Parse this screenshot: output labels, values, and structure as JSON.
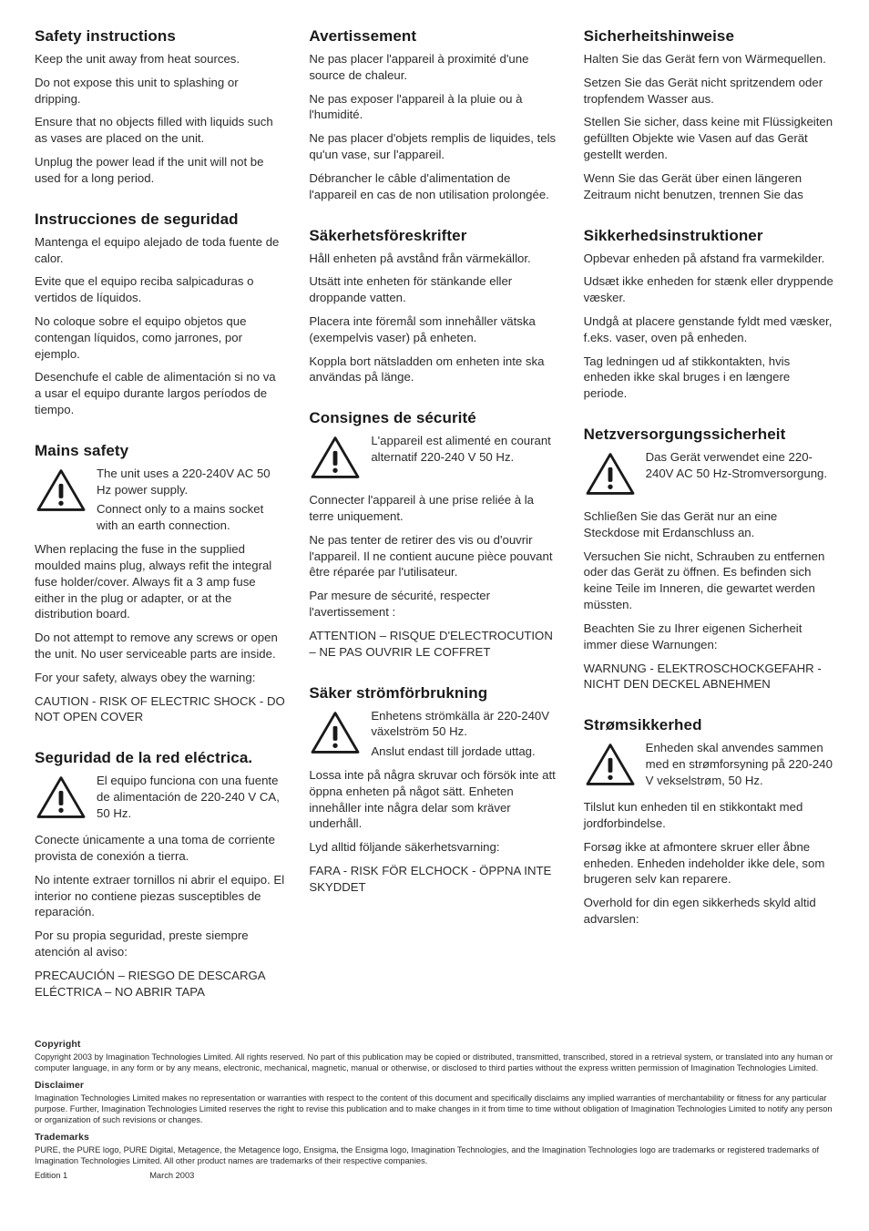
{
  "icon_stroke": "#1a1a1a",
  "columns": [
    [
      {
        "heading": "Safety instructions",
        "paras": [
          "Keep the unit away from heat sources.",
          "Do not expose this unit to splashing or dripping.",
          "Ensure that no objects filled with liquids such as vases are placed on the unit.",
          "Unplug the power lead if the unit will not be used for a long period."
        ]
      },
      {
        "heading": "Instrucciones de seguridad",
        "paras": [
          "Mantenga el equipo alejado de toda fuente de calor.",
          "Evite que el equipo reciba salpicaduras o vertidos de líquidos.",
          "No coloque sobre el equipo objetos que contengan líquidos, como jarrones, por ejemplo.",
          "Desenchufe el cable de alimentación si no va a usar el equipo durante largos períodos de tiempo."
        ]
      },
      {
        "heading": "Mains safety",
        "icon_paras": [
          "The unit uses a 220-240V AC 50 Hz power supply.",
          "Connect only to a mains socket with an earth connection."
        ],
        "paras": [
          "When replacing the fuse in the supplied moulded mains plug, always refit the integral fuse holder/cover.  Always fit a 3 amp fuse either in the plug or adapter, or at the distribution board.",
          "Do not attempt to remove any screws or open the unit. No user serviceable parts are inside.",
          "For your safety, always obey the warning:",
          "CAUTION - RISK OF ELECTRIC SHOCK - DO NOT OPEN COVER"
        ]
      },
      {
        "heading": "Seguridad de la red eléctrica.",
        "icon_paras": [
          "El equipo funciona con una fuente de alimentación de 220-240 V CA, 50 Hz."
        ],
        "paras": [
          "Conecte únicamente a una toma de corriente provista de conexión a tierra.",
          "No intente extraer tornillos ni abrir el equipo. El interior no contiene piezas susceptibles de reparación.",
          "Por su propia seguridad, preste siempre atención al aviso:",
          "PRECAUCIÓN – RIESGO DE DESCARGA ELÉCTRICA – NO ABRIR TAPA"
        ]
      }
    ],
    [
      {
        "heading": "Avertissement",
        "paras": [
          "Ne pas placer l'appareil à proximité d'une source de chaleur.",
          "Ne pas exposer l'appareil à la pluie ou à l'humidité.",
          "Ne pas placer d'objets remplis de liquides, tels qu'un vase, sur l'appareil.",
          "Débrancher le câble d'alimentation de l'appareil en cas de non utilisation prolongée."
        ]
      },
      {
        "heading": "Säkerhetsföreskrifter",
        "paras": [
          "Håll enheten på avstånd från värmekällor.",
          "Utsätt inte enheten för stänkande eller droppande vatten.",
          "Placera inte föremål som innehåller vätska (exempelvis vaser) på enheten.",
          "Koppla bort nätsladden om enheten inte ska användas på länge."
        ]
      },
      {
        "heading": "Consignes de sécurité",
        "icon_paras": [
          "L'appareil est alimenté en courant alternatif 220-240 V 50 Hz."
        ],
        "paras": [
          "Connecter l'appareil à une prise reliée à la terre uniquement.",
          "Ne pas tenter de retirer des vis ou d'ouvrir l'appareil. Il ne contient aucune pièce pouvant être réparée par l'utilisateur.",
          "Par mesure de sécurité, respecter l'avertissement :",
          "ATTENTION – RISQUE D'ELECTROCUTION – NE PAS OUVRIR LE COFFRET"
        ]
      },
      {
        "heading": "Säker strömförbrukning",
        "icon_paras": [
          "Enhetens strömkälla är 220-240V växelström 50 Hz.",
          "Anslut endast till jordade uttag."
        ],
        "paras": [
          "Lossa inte på några skruvar och försök inte att öppna enheten på något sätt. Enheten innehåller inte några delar som kräver underhåll.",
          "Lyd alltid följande säkerhetsvarning:",
          "FARA - RISK FÖR ELCHOCK - ÖPPNA INTE SKYDDET"
        ]
      }
    ],
    [
      {
        "heading": "Sicherheitshinweise",
        "paras": [
          "Halten Sie das Gerät fern von Wärmequellen.",
          "Setzen Sie das Gerät nicht spritzendem oder tropfendem Wasser aus.",
          "Stellen Sie sicher, dass keine mit Flüssigkeiten gefüllten Objekte wie Vasen auf das Gerät gestellt werden.",
          "Wenn Sie das Gerät über einen längeren Zeitraum nicht benutzen, trennen Sie das"
        ]
      },
      {
        "heading": "Sikkerhedsinstruktioner",
        "paras": [
          "Opbevar enheden på afstand fra varmekilder.",
          "Udsæt ikke enheden for stænk eller dryppende væsker.",
          "Undgå at placere genstande fyldt med væsker, f.eks. vaser, oven på enheden.",
          "Tag ledningen ud af stikkontakten, hvis enheden ikke skal bruges i en længere periode."
        ]
      },
      {
        "heading": "Netzversorgungssicherheit",
        "icon_paras": [
          "Das Gerät verwendet eine 220-240V AC 50 Hz-Stromversorgung."
        ],
        "paras": [
          "Schließen Sie das Gerät nur an eine Steckdose mit Erdanschluss an.",
          "Versuchen Sie nicht, Schrauben zu entfernen oder das Gerät zu öffnen. Es befinden sich keine Teile im Inneren, die gewartet werden müssten.",
          "Beachten Sie zu Ihrer eigenen Sicherheit immer diese Warnungen:",
          "WARNUNG - ELEKTROSCHOCKGEFAHR  - NICHT DEN DECKEL ABNEHMEN"
        ],
        "first_para_continues_icon": true
      },
      {
        "heading": "Strømsikkerhed",
        "icon_paras": [
          "Enheden skal anvendes sammen med en strømforsyning på 220-240 V vekselstrøm, 50 Hz."
        ],
        "paras": [
          "Tilslut kun enheden til en stikkontakt med jordforbindelse.",
          "Forsøg ikke at afmontere skruer eller åbne enheden. Enheden indeholder ikke dele, som brugeren selv kan reparere.",
          "Overhold for din egen sikkerheds skyld altid advarslen:"
        ]
      }
    ]
  ],
  "footer": {
    "copyright_h": "Copyright",
    "copyright_t": "Copyright 2003 by Imagination Technologies Limited. All rights reserved. No part of this publication may be copied or distributed, transmitted, transcribed, stored in a retrieval system, or translated into any human or computer language, in any form or by any means, electronic, mechanical, magnetic, manual or otherwise, or disclosed to third parties without the express written permission of Imagination Technologies Limited.",
    "disclaimer_h": "Disclaimer",
    "disclaimer_t": "Imagination Technologies Limited makes no representation or warranties with respect to the content of this document and specifically disclaims any implied warranties of merchantability or fitness for any particular purpose. Further, Imagination Technologies Limited reserves the right to revise this publication and to make changes in it from time to time without obligation of Imagination Technologies Limited to notify any person or organization of such revisions or changes.",
    "trademarks_h": "Trademarks",
    "trademarks_t": "PURE, the PURE logo, PURE Digital, Metagence, the Metagence logo, Ensigma, the Ensigma logo, Imagination Technologies, and the Imagination Technologies logo are trademarks or registered trademarks of Imagination Technologies Limited. All other product names are trademarks of their respective companies.",
    "edition": "Edition 1",
    "date": "March 2003"
  }
}
